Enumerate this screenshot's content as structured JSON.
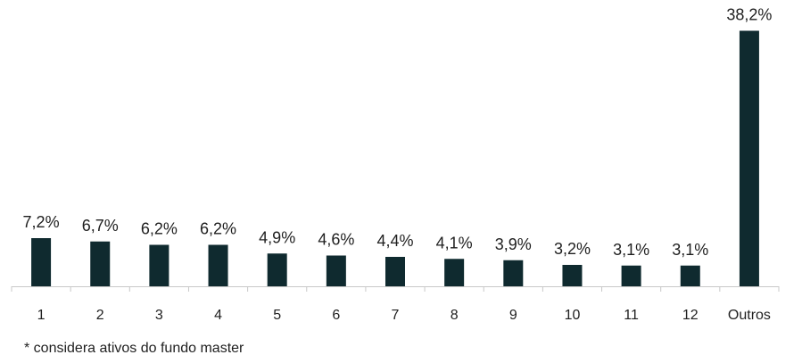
{
  "chart_data": {
    "type": "bar",
    "categories": [
      "1",
      "2",
      "3",
      "4",
      "5",
      "6",
      "7",
      "8",
      "9",
      "10",
      "11",
      "12",
      "Outros"
    ],
    "values": [
      7.2,
      6.7,
      6.2,
      6.2,
      4.9,
      4.6,
      4.4,
      4.1,
      3.9,
      3.2,
      3.1,
      3.1,
      38.2
    ],
    "data_labels": [
      "7,2%",
      "6,7%",
      "6,2%",
      "6,2%",
      "4,9%",
      "4,6%",
      "4,4%",
      "4,1%",
      "3,9%",
      "3,2%",
      "3,1%",
      "3,1%",
      "38,2%"
    ],
    "title": "",
    "xlabel": "",
    "ylabel": "",
    "ylim": [
      0,
      40
    ],
    "grid": false,
    "legend": "none",
    "bar_color": "#0f2a2f"
  },
  "footnote": "* considera ativos do fundo master"
}
